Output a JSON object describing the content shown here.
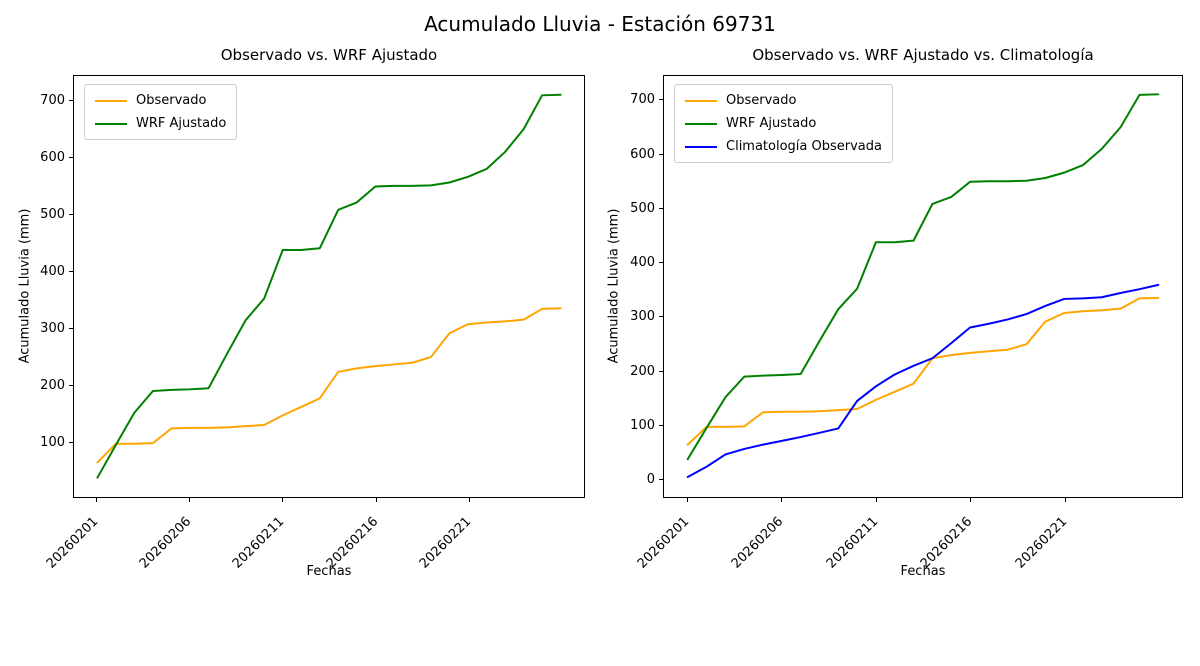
{
  "figure": {
    "suptitle": "Acumulado Lluvia - Estación 69731"
  },
  "chart_data": [
    {
      "type": "line",
      "title": "Observado vs. WRF Ajustado",
      "xlabel": "Fechas",
      "ylabel": "Acumulado Lluvia (mm)",
      "grid": false,
      "legend_position": "upper left",
      "x_categories": [
        "20260201",
        "20260202",
        "20260203",
        "20260204",
        "20260205",
        "20260206",
        "20260207",
        "20260208",
        "20260209",
        "20260210",
        "20260211",
        "20260212",
        "20260213",
        "20260214",
        "20260215",
        "20260216",
        "20260217",
        "20260218",
        "20260219",
        "20260220",
        "20260221",
        "20260222",
        "20260223",
        "20260224",
        "20260225",
        "20260226"
      ],
      "xticks": {
        "indices": [
          0,
          5,
          10,
          15,
          20
        ],
        "labels": [
          "20260201",
          "20260206",
          "20260211",
          "20260216",
          "20260221"
        ]
      },
      "yticks": [
        100,
        200,
        300,
        400,
        500,
        600,
        700
      ],
      "xlim": [
        -1.25,
        26.25
      ],
      "ylim": [
        1,
        744
      ],
      "series": [
        {
          "name": "Observado",
          "color": "#FFA500",
          "values": [
            62,
            95,
            95,
            96,
            122,
            123,
            123,
            124,
            126,
            128,
            145,
            160,
            175,
            222,
            228,
            232,
            235,
            238,
            248,
            290,
            306,
            309,
            311,
            314,
            333,
            334
          ]
        },
        {
          "name": "WRF Ajustado",
          "color": "#008000",
          "values": [
            35,
            93,
            150,
            188,
            190,
            191,
            193,
            254,
            313,
            351,
            437,
            437,
            440,
            508,
            521,
            549,
            550,
            550,
            551,
            556,
            566,
            580,
            610,
            650,
            710,
            711
          ]
        }
      ]
    },
    {
      "type": "line",
      "title": "Observado vs. WRF Ajustado vs. Climatología",
      "xlabel": "Fechas",
      "ylabel": "Acumulado Lluvia (mm)",
      "grid": false,
      "legend_position": "upper left",
      "x_categories": [
        "20260201",
        "20260202",
        "20260203",
        "20260204",
        "20260205",
        "20260206",
        "20260207",
        "20260208",
        "20260209",
        "20260210",
        "20260211",
        "20260212",
        "20260213",
        "20260214",
        "20260215",
        "20260216",
        "20260217",
        "20260218",
        "20260219",
        "20260220",
        "20260221",
        "20260222",
        "20260223",
        "20260224",
        "20260225",
        "20260226"
      ],
      "xticks": {
        "indices": [
          0,
          5,
          10,
          15,
          20
        ],
        "labels": [
          "20260201",
          "20260206",
          "20260211",
          "20260216",
          "20260221"
        ]
      },
      "yticks": [
        0,
        100,
        200,
        300,
        400,
        500,
        600,
        700
      ],
      "xlim": [
        -1.25,
        26.25
      ],
      "ylim": [
        -35,
        745
      ],
      "series": [
        {
          "name": "Observado",
          "color": "#FFA500",
          "values": [
            62,
            95,
            95,
            96,
            122,
            123,
            123,
            124,
            126,
            128,
            145,
            160,
            175,
            222,
            228,
            232,
            235,
            238,
            248,
            290,
            306,
            309,
            311,
            314,
            333,
            334
          ]
        },
        {
          "name": "WRF Ajustado",
          "color": "#008000",
          "values": [
            35,
            93,
            150,
            188,
            190,
            191,
            193,
            254,
            313,
            351,
            437,
            437,
            440,
            508,
            521,
            549,
            550,
            550,
            551,
            556,
            566,
            580,
            610,
            650,
            710,
            711
          ]
        },
        {
          "name": "Climatología Observada",
          "color": "#0000FF",
          "values": [
            2,
            21,
            44,
            54,
            62,
            69,
            76,
            84,
            92,
            143,
            170,
            192,
            208,
            222,
            250,
            279,
            286,
            294,
            304,
            319,
            332,
            333,
            335,
            343,
            350,
            358
          ]
        }
      ]
    }
  ]
}
